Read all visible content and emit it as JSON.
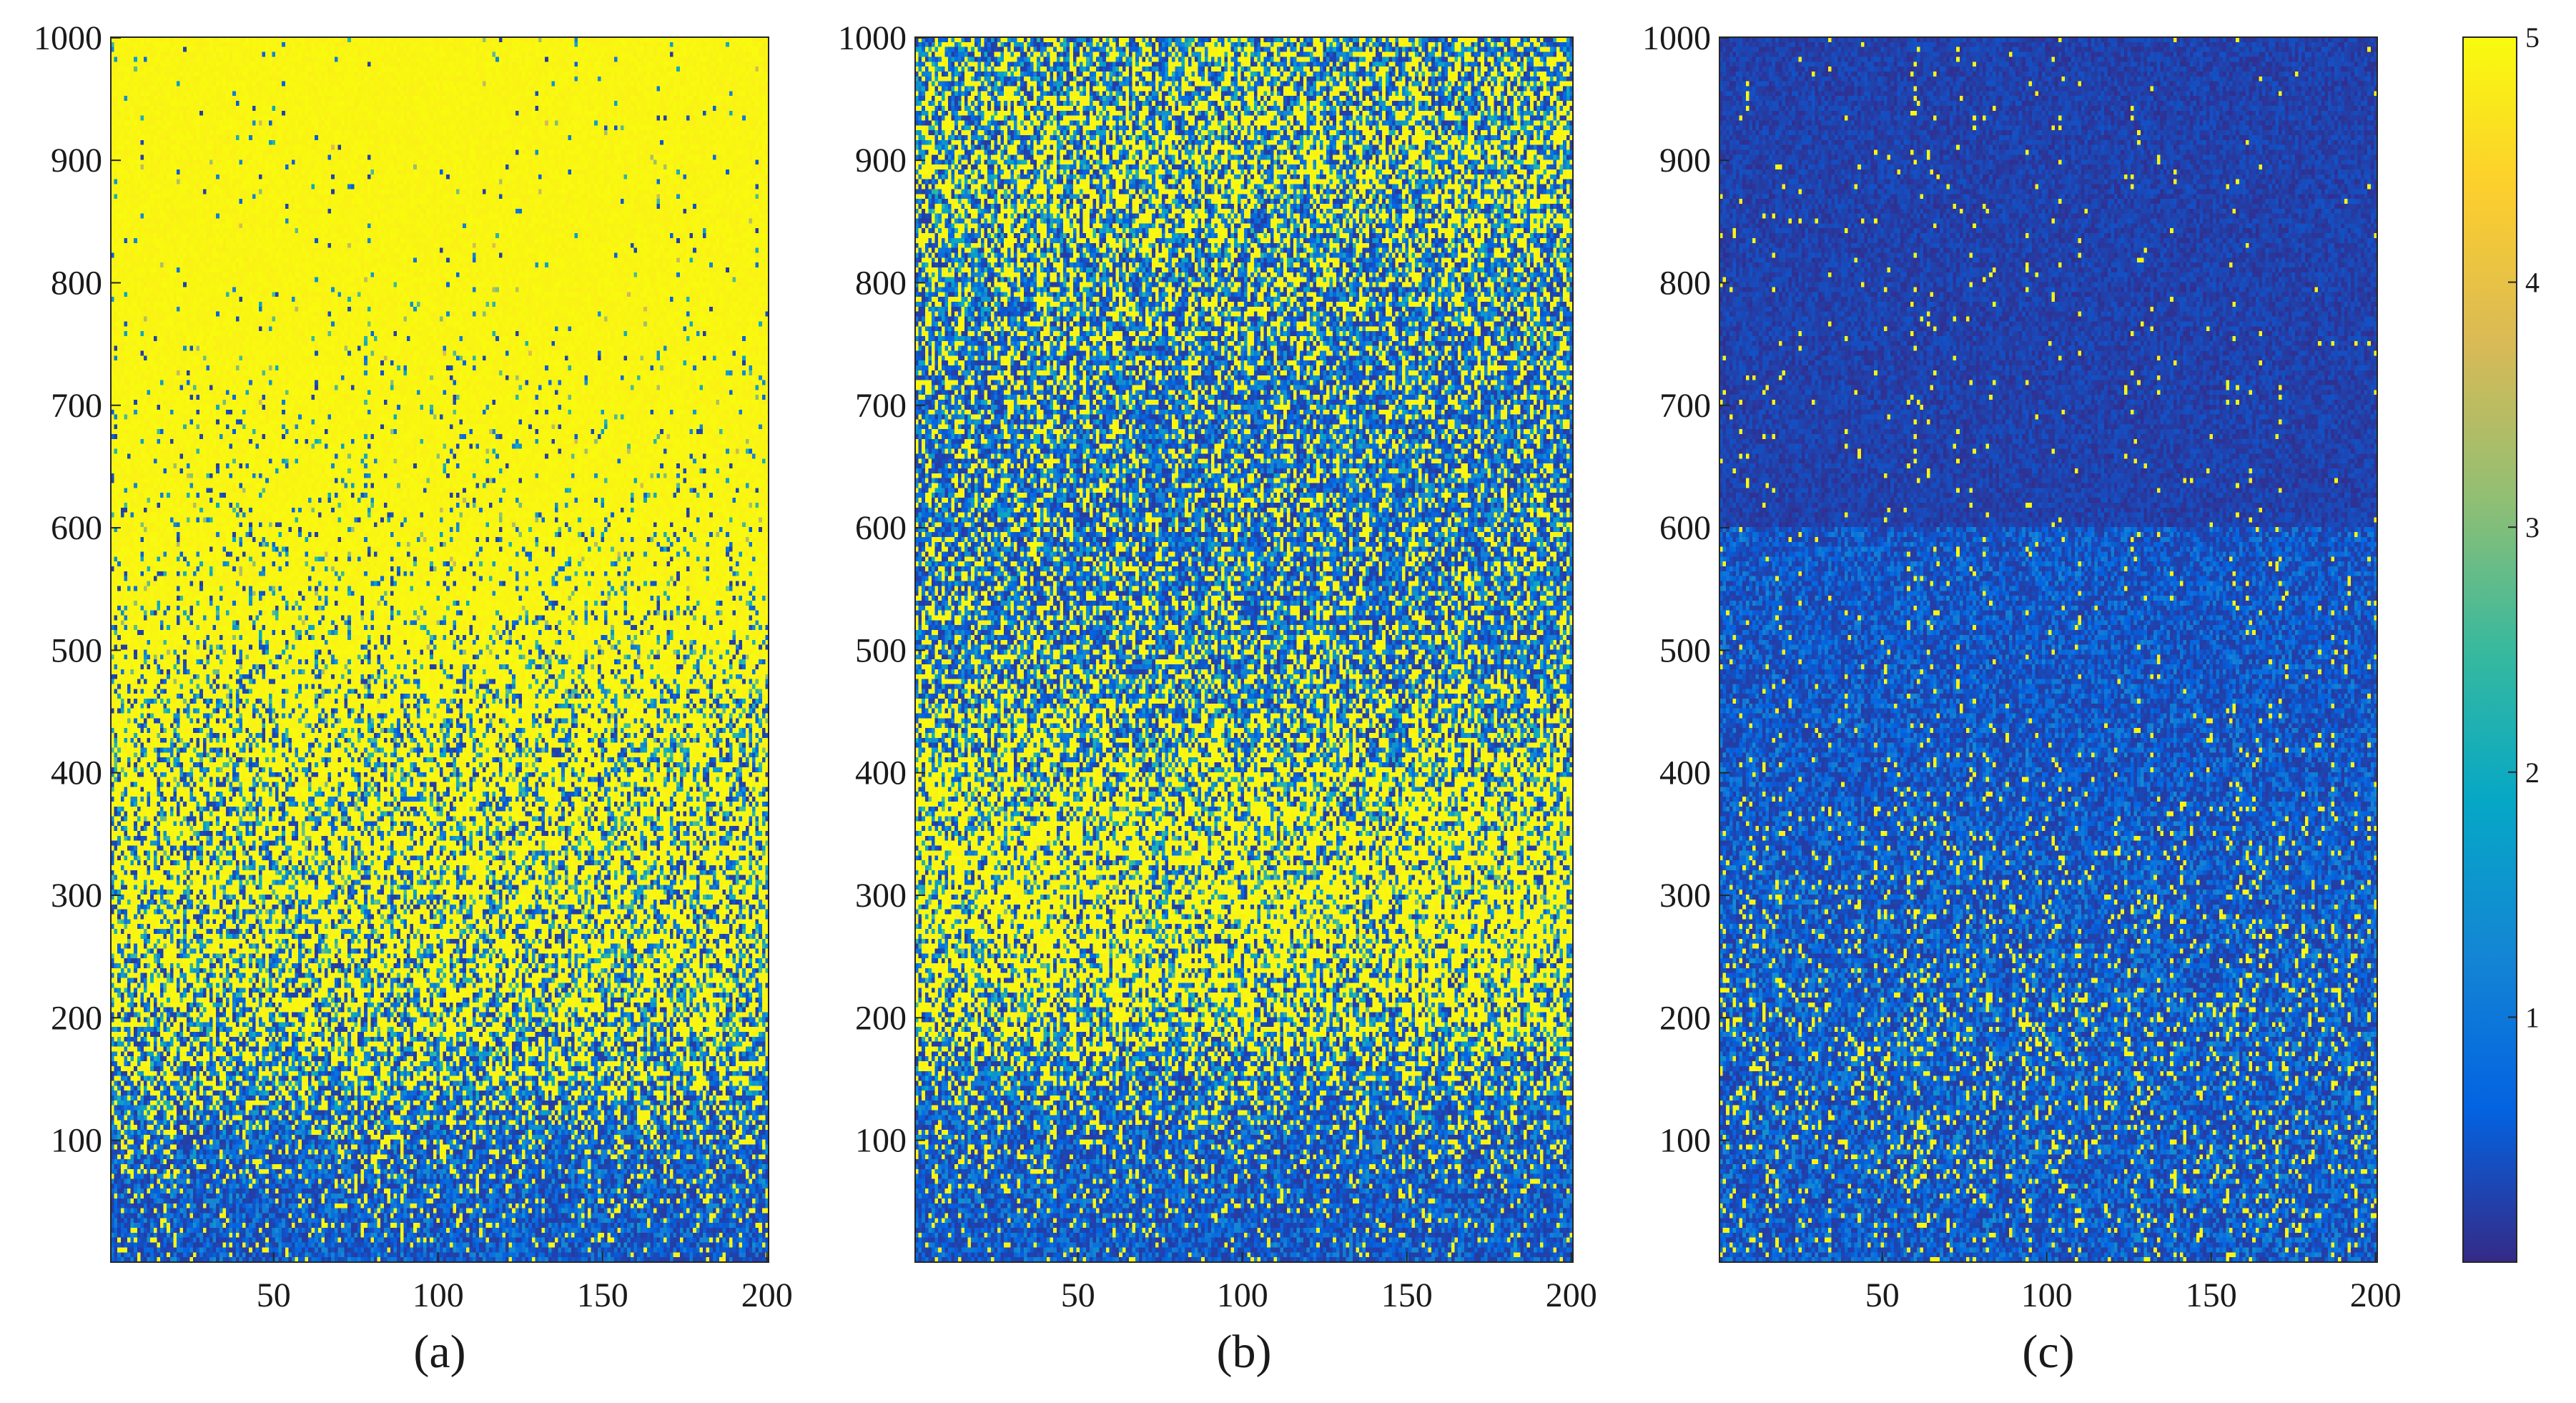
{
  "chart_data": [
    {
      "type": "heatmap",
      "panel_label": "(a)",
      "x_range": [
        1,
        200
      ],
      "y_range": [
        1,
        1000
      ],
      "x_ticks": [
        "50",
        "100",
        "150",
        "200"
      ],
      "y_ticks": [
        "100",
        "200",
        "300",
        "400",
        "500",
        "600",
        "700",
        "800",
        "900",
        "1000"
      ],
      "value_profile": {
        "y_levels": [
          1,
          50,
          100,
          150,
          200,
          250,
          300,
          350,
          400,
          450,
          500,
          550,
          600,
          650,
          700,
          750,
          800,
          850,
          900,
          950,
          1000
        ],
        "saturated_fraction": [
          0.08,
          0.12,
          0.22,
          0.4,
          0.52,
          0.58,
          0.62,
          0.62,
          0.62,
          0.68,
          0.8,
          0.86,
          0.9,
          0.93,
          0.94,
          0.96,
          0.98,
          0.99,
          0.99,
          0.99,
          0.99
        ]
      }
    },
    {
      "type": "heatmap",
      "panel_label": "(b)",
      "x_range": [
        1,
        200
      ],
      "y_range": [
        1,
        1000
      ],
      "x_ticks": [
        "50",
        "100",
        "150",
        "200"
      ],
      "y_ticks": [
        "100",
        "200",
        "300",
        "400",
        "500",
        "600",
        "700",
        "800",
        "900",
        "1000"
      ],
      "value_profile": {
        "y_levels": [
          1,
          50,
          100,
          150,
          200,
          250,
          300,
          350,
          400,
          450,
          500,
          550,
          600,
          650,
          700,
          750,
          800,
          850,
          900,
          950,
          1000
        ],
        "saturated_fraction": [
          0.06,
          0.1,
          0.15,
          0.28,
          0.52,
          0.62,
          0.66,
          0.62,
          0.54,
          0.4,
          0.32,
          0.28,
          0.26,
          0.26,
          0.28,
          0.3,
          0.36,
          0.44,
          0.46,
          0.42,
          0.38
        ]
      }
    },
    {
      "type": "heatmap",
      "panel_label": "(c)",
      "x_range": [
        1,
        200
      ],
      "y_range": [
        1,
        1000
      ],
      "x_ticks": [
        "50",
        "100",
        "150",
        "200"
      ],
      "y_ticks": [
        "100",
        "200",
        "300",
        "400",
        "500",
        "600",
        "700",
        "800",
        "900",
        "1000"
      ],
      "value_profile": {
        "y_levels": [
          1,
          50,
          100,
          150,
          200,
          250,
          300,
          350,
          400,
          450,
          500,
          550,
          600,
          650,
          700,
          750,
          800,
          850,
          900,
          950,
          1000
        ],
        "saturated_fraction": [
          0.06,
          0.09,
          0.12,
          0.12,
          0.14,
          0.1,
          0.09,
          0.07,
          0.04,
          0.025,
          0.02,
          0.015,
          0.012,
          0.01,
          0.008,
          0.006,
          0.004,
          0.003,
          0.002,
          0.001,
          0.0
        ]
      }
    }
  ],
  "colorbar": {
    "range": [
      0,
      5
    ],
    "ticks": [
      "1",
      "2",
      "3",
      "4",
      "5"
    ],
    "colormap": "parula",
    "stops": [
      "#352a87",
      "#0363e1",
      "#1485d4",
      "#06a7c6",
      "#38b99e",
      "#92bf73",
      "#d9ba56",
      "#fcce2e",
      "#f9fb0e"
    ]
  }
}
